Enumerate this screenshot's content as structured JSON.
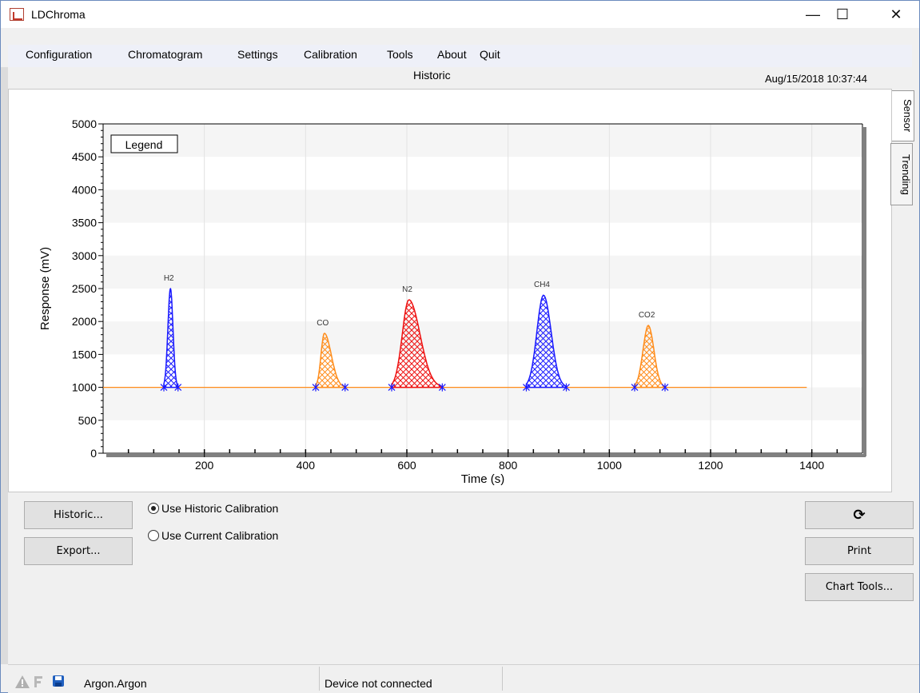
{
  "window": {
    "title": "LDChroma",
    "minimize": "—",
    "maximize": "☐",
    "close": "✕"
  },
  "menu": [
    "Configuration",
    "Chromatogram",
    "Settings",
    "Calibration",
    "Tools",
    "About",
    "Quit"
  ],
  "header": {
    "title": "Historic",
    "datetime": "Aug/15/2018 10:37:44"
  },
  "tabs": {
    "sensor": "Sensor",
    "trending": "Trending"
  },
  "chart_data": {
    "type": "line",
    "xlabel": "Time (s)",
    "ylabel": "Response (mV)",
    "xlim": [
      0,
      1500
    ],
    "ylim": [
      0,
      5000
    ],
    "x_ticks": [
      200,
      400,
      600,
      800,
      1000,
      1200,
      1400
    ],
    "y_ticks": [
      0,
      500,
      1000,
      1500,
      2000,
      2500,
      3000,
      3500,
      4000,
      4500,
      5000
    ],
    "legend_label": "Legend",
    "legend_position": "top-left",
    "baseline": {
      "value": 1000,
      "x_start": 0,
      "x_end": 1390,
      "color": "#ff8c1a"
    },
    "peaks": [
      {
        "name": "H2",
        "x_start": 120,
        "x_peak": 133,
        "x_end": 148,
        "height": 2500,
        "color": "#1a1aff"
      },
      {
        "name": "CO",
        "x_start": 420,
        "x_peak": 437,
        "x_end": 478,
        "height": 1820,
        "color": "#ff8c1a"
      },
      {
        "name": "N2",
        "x_start": 570,
        "x_peak": 604,
        "x_end": 670,
        "height": 2330,
        "color": "#ee1111"
      },
      {
        "name": "CH4",
        "x_start": 836,
        "x_peak": 870,
        "x_end": 915,
        "height": 2400,
        "color": "#1a1aff"
      },
      {
        "name": "CO2",
        "x_start": 1050,
        "x_peak": 1077,
        "x_end": 1110,
        "height": 1940,
        "color": "#ff8c1a"
      }
    ]
  },
  "controls": {
    "historic_button": "Historic...",
    "export_button": "Export...",
    "radio_historic": "Use Historic Calibration",
    "radio_current": "Use Current Calibration",
    "radio_selected": "historic",
    "refresh_icon": "⟳",
    "print_button": "Print",
    "chart_tools_button": "Chart Tools..."
  },
  "status": {
    "profile": "Argon.Argon",
    "device": "Device not connected"
  }
}
